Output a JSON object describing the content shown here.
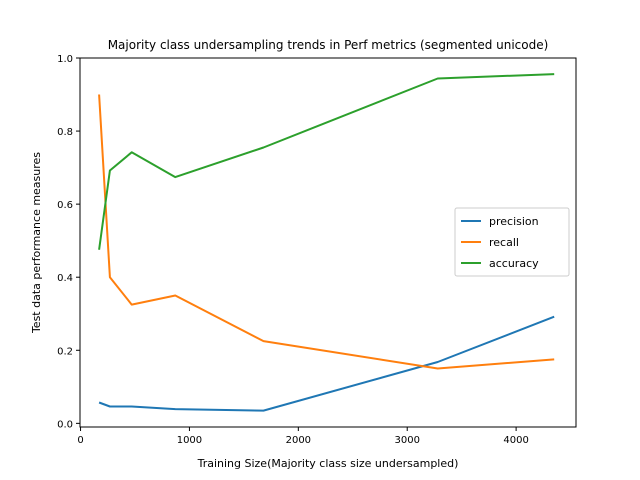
{
  "chart_data": {
    "type": "line",
    "title": "Majority class undersampling trends in Perf metrics (segmented unicode)",
    "xlabel": "Training Size(Majority class size undersampled)",
    "ylabel": "Test data performance measures",
    "xlim": [
      -5,
      4550
    ],
    "ylim": [
      -0.01,
      1.0
    ],
    "xticks": [
      0,
      1000,
      2000,
      3000,
      4000
    ],
    "yticks": [
      0.0,
      0.2,
      0.4,
      0.6,
      0.8,
      1.0
    ],
    "xtick_labels": [
      "0",
      "1000",
      "2000",
      "3000",
      "4000"
    ],
    "ytick_labels": [
      "0.0",
      "0.2",
      "0.4",
      "0.6",
      "0.8",
      "1.0"
    ],
    "grid": false,
    "legend_position": "center-right",
    "x": [
      170,
      270,
      470,
      870,
      1680,
      3280,
      4350
    ],
    "series": [
      {
        "name": "precision",
        "color": "#1f77b4",
        "values": [
          0.057,
          0.046,
          0.046,
          0.039,
          0.035,
          0.168,
          0.292
        ]
      },
      {
        "name": "recall",
        "color": "#ff7f0e",
        "values": [
          0.9,
          0.4,
          0.325,
          0.35,
          0.225,
          0.15,
          0.175
        ]
      },
      {
        "name": "accuracy",
        "color": "#2ca02c",
        "values": [
          0.475,
          0.692,
          0.742,
          0.674,
          0.755,
          0.944,
          0.956
        ]
      }
    ]
  }
}
